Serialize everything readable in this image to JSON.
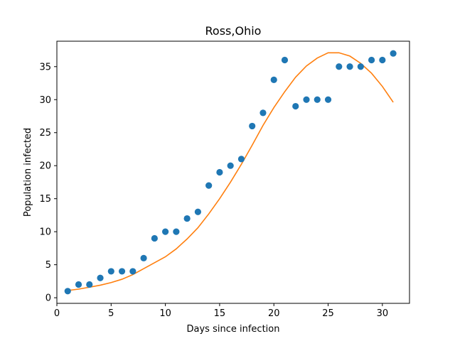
{
  "chart_data": {
    "type": "scatter",
    "title": "Ross,Ohio",
    "xlabel": "Days since infection",
    "ylabel": "Population infected",
    "xlim": [
      0,
      32.5
    ],
    "ylim": [
      -0.85,
      38.85
    ],
    "xticks": [
      0,
      5,
      10,
      15,
      20,
      25,
      30
    ],
    "yticks": [
      0,
      5,
      10,
      15,
      20,
      25,
      30,
      35
    ],
    "grid": false,
    "series": [
      {
        "kind": "scatter",
        "color": "#1f77b4",
        "x": [
          1,
          2,
          3,
          4,
          5,
          6,
          7,
          8,
          9,
          10,
          11,
          12,
          13,
          14,
          15,
          16,
          17,
          18,
          19,
          20,
          21,
          22,
          23,
          24,
          25,
          26,
          27,
          28,
          29,
          30,
          31
        ],
        "y": [
          1,
          2,
          2,
          3,
          4,
          4,
          4,
          6,
          9,
          10,
          10,
          12,
          13,
          17,
          19,
          20,
          21,
          26,
          28,
          33,
          36,
          29,
          30,
          30,
          30,
          35,
          35,
          35,
          36,
          36,
          37
        ]
      },
      {
        "kind": "line",
        "color": "#ff7f0e",
        "x": [
          1,
          2,
          3,
          4,
          5,
          6,
          7,
          8,
          9,
          10,
          11,
          12,
          13,
          14,
          15,
          16,
          17,
          18,
          19,
          20,
          21,
          22,
          23,
          24,
          25,
          26,
          27,
          28,
          29,
          30,
          31
        ],
        "y": [
          1.1,
          1.3,
          1.6,
          1.9,
          2.3,
          2.8,
          3.5,
          4.4,
          5.3,
          6.2,
          7.4,
          8.9,
          10.6,
          12.7,
          15.0,
          17.5,
          20.2,
          23.1,
          26.1,
          28.8,
          31.2,
          33.4,
          35.1,
          36.3,
          37.1,
          37.1,
          36.6,
          35.5,
          34.0,
          32.0,
          29.6
        ]
      }
    ]
  }
}
